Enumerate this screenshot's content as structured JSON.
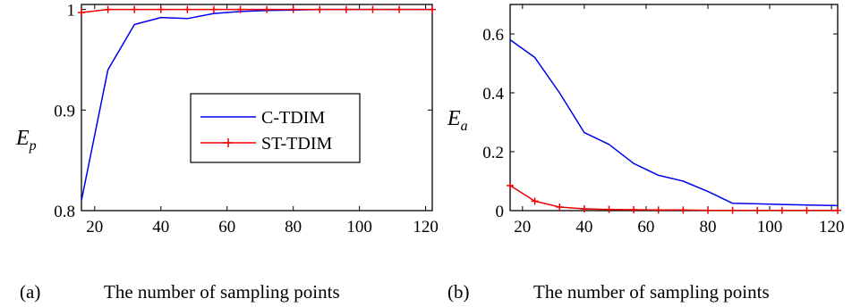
{
  "chart_data": [
    {
      "type": "line",
      "panel_label": "(a)",
      "xlabel": "The number of sampling points",
      "ylabel": "E",
      "ylabel_sub": "p",
      "xlim": [
        16,
        122
      ],
      "ylim": [
        0.8,
        1.005
      ],
      "xticks": [
        "20",
        "40",
        "60",
        "80",
        "100",
        "120"
      ],
      "yticks": [
        "0.8",
        "0.9",
        "1"
      ],
      "xtick_values": [
        20,
        40,
        60,
        80,
        100,
        120
      ],
      "ytick_values": [
        0.8,
        0.9,
        1.0
      ],
      "legend": {
        "position": "center-right",
        "entries": [
          "C-TDIM",
          "ST-TDIM"
        ]
      },
      "series": [
        {
          "name": "C-TDIM",
          "color": "#0000ee",
          "marker": "none",
          "x": [
            16,
            24,
            32,
            40,
            48,
            56,
            64,
            72,
            80,
            88,
            96,
            104,
            112,
            122
          ],
          "y": [
            0.81,
            0.94,
            0.985,
            0.992,
            0.991,
            0.996,
            0.998,
            0.999,
            0.9995,
            1.0,
            1.0,
            1.0,
            1.0,
            1.0
          ]
        },
        {
          "name": "ST-TDIM",
          "color": "#ee0000",
          "marker": "plus",
          "x": [
            16,
            24,
            32,
            40,
            48,
            56,
            64,
            72,
            80,
            88,
            96,
            104,
            112,
            122
          ],
          "y": [
            0.997,
            1.0,
            1.0,
            1.0,
            1.0,
            1.0,
            1.0,
            1.0,
            1.0,
            1.0,
            1.0,
            1.0,
            1.0,
            1.0
          ]
        }
      ]
    },
    {
      "type": "line",
      "panel_label": "(b)",
      "xlabel": "The number of sampling points",
      "ylabel": "E",
      "ylabel_sub": "a",
      "xlim": [
        16,
        122
      ],
      "ylim": [
        0,
        0.7
      ],
      "xticks": [
        "20",
        "40",
        "60",
        "80",
        "100",
        "120"
      ],
      "yticks": [
        "0",
        "0.2",
        "0.4",
        "0.6"
      ],
      "xtick_values": [
        20,
        40,
        60,
        80,
        100,
        120
      ],
      "ytick_values": [
        0,
        0.2,
        0.4,
        0.6
      ],
      "series": [
        {
          "name": "C-TDIM",
          "color": "#0000ee",
          "marker": "none",
          "x": [
            16,
            24,
            32,
            40,
            48,
            56,
            64,
            72,
            80,
            88,
            96,
            104,
            112,
            122
          ],
          "y": [
            0.58,
            0.52,
            0.4,
            0.265,
            0.225,
            0.16,
            0.12,
            0.1,
            0.065,
            0.025,
            0.023,
            0.021,
            0.019,
            0.017
          ]
        },
        {
          "name": "ST-TDIM",
          "color": "#ee0000",
          "marker": "plus",
          "x": [
            16,
            24,
            32,
            40,
            48,
            56,
            64,
            72,
            80,
            88,
            96,
            104,
            112,
            122
          ],
          "y": [
            0.085,
            0.032,
            0.012,
            0.006,
            0.004,
            0.003,
            0.002,
            0.002,
            0.001,
            0.001,
            0.001,
            0.001,
            0.001,
            0.001
          ]
        }
      ]
    }
  ]
}
